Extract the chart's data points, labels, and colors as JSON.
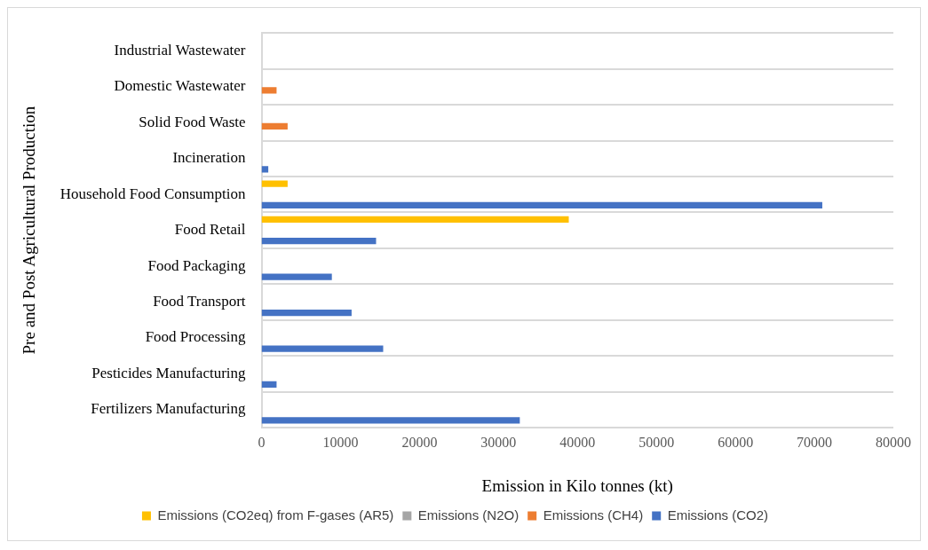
{
  "chart_data": {
    "type": "bar",
    "orientation": "horizontal",
    "xlabel": "Emission in Kilo tonnes (kt)",
    "ylabel": "Pre and Post Agricultural Production",
    "categories": [
      "Industrial Wastewater",
      "Domestic Wastewater",
      "Solid Food Waste",
      "Incineration",
      "Household Food Consumption",
      "Food Retail",
      "Food Packaging",
      "Food Transport",
      "Food Processing",
      "Pesticides Manufacturing",
      "Fertilizers Manufacturing"
    ],
    "series": [
      {
        "name": "Emissions (CO2eq) from F-gases (AR5)",
        "color": "#ffc000",
        "values": [
          null,
          null,
          null,
          null,
          3300,
          38900,
          null,
          null,
          null,
          null,
          null
        ]
      },
      {
        "name": "Emissions (N2O)",
        "color": "#a5a5a5",
        "values": [
          null,
          null,
          null,
          null,
          null,
          null,
          null,
          null,
          null,
          null,
          null
        ]
      },
      {
        "name": "Emissions (CH4)",
        "color": "#ed7d31",
        "values": [
          null,
          1900,
          3300,
          null,
          null,
          null,
          null,
          null,
          null,
          null,
          null
        ]
      },
      {
        "name": "Emissions (CO2)",
        "color": "#4472c4",
        "values": [
          null,
          null,
          null,
          850,
          71000,
          14500,
          8900,
          11400,
          15400,
          1900,
          32700
        ]
      }
    ],
    "xlim": [
      0,
      80000
    ],
    "xticks": [
      0,
      10000,
      20000,
      30000,
      40000,
      50000,
      60000,
      70000,
      80000
    ],
    "grid": "y",
    "legend": "bottom"
  }
}
